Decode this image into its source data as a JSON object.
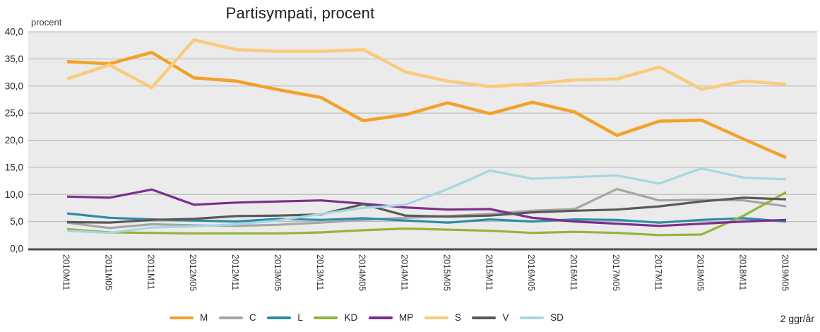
{
  "chart_data": {
    "type": "line",
    "title": "Partisympati, procent",
    "y_axis_label": "procent",
    "corner_note": "2 ggr/år",
    "ylim": [
      0,
      40
    ],
    "y_tick_step": 5,
    "y_tick_labels": [
      "40,0",
      "35,0",
      "30,0",
      "25,0",
      "20,0",
      "15,0",
      "10,0",
      "5,0",
      "0,0"
    ],
    "grid": true,
    "legend_position": "bottom",
    "x_label_orientation": "vertical",
    "plot_background": "#ebebeb",
    "gridline_color": "#b3b3b3",
    "axis_line_color": "#4d4d4d",
    "categories": [
      "2010M11",
      "2011M05",
      "2011M11",
      "2012M05",
      "2012M11",
      "2013M05",
      "2013M11",
      "2014M05",
      "2014M11",
      "2015M05",
      "2015M11",
      "2016M05",
      "2016M11",
      "2017M05",
      "2017M11",
      "2018M05",
      "2018M11",
      "2019M05"
    ],
    "series": [
      {
        "name": "M",
        "color": "#f2a129",
        "values": [
          34.5,
          34.1,
          36.2,
          31.5,
          30.9,
          29.3,
          27.9,
          23.6,
          24.7,
          26.9,
          24.9,
          27.0,
          25.2,
          20.9,
          23.5,
          23.7,
          20.2,
          16.8
        ]
      },
      {
        "name": "C",
        "color": "#a6a6a6",
        "values": [
          4.8,
          3.8,
          4.5,
          4.3,
          4.2,
          4.4,
          4.8,
          5.3,
          5.7,
          6.0,
          6.4,
          7.0,
          7.3,
          11.0,
          8.9,
          9.0,
          8.9,
          7.8
        ]
      },
      {
        "name": "L",
        "color": "#2e8ca8",
        "values": [
          6.5,
          5.7,
          5.4,
          5.2,
          5.0,
          5.5,
          5.3,
          5.6,
          5.2,
          4.8,
          5.4,
          5.0,
          5.4,
          5.3,
          4.8,
          5.3,
          5.6,
          5.0
        ]
      },
      {
        "name": "KD",
        "color": "#94b43c",
        "values": [
          3.6,
          3.0,
          2.9,
          2.8,
          2.8,
          2.8,
          3.0,
          3.4,
          3.7,
          3.5,
          3.3,
          2.9,
          3.1,
          2.9,
          2.5,
          2.6,
          6.1,
          10.4
        ]
      },
      {
        "name": "MP",
        "color": "#7c2e8e",
        "values": [
          9.6,
          9.4,
          10.9,
          8.1,
          8.5,
          8.7,
          8.9,
          8.3,
          7.6,
          7.2,
          7.3,
          5.7,
          5.0,
          4.6,
          4.2,
          4.6,
          5.0,
          5.3
        ]
      },
      {
        "name": "S",
        "color": "#facb7c",
        "values": [
          31.3,
          33.9,
          29.7,
          38.5,
          36.7,
          36.4,
          36.4,
          36.7,
          32.6,
          30.9,
          29.9,
          30.4,
          31.1,
          31.3,
          33.5,
          29.4,
          30.9,
          30.3
        ]
      },
      {
        "name": "V",
        "color": "#595959",
        "values": [
          4.9,
          4.8,
          5.3,
          5.5,
          6.0,
          6.1,
          6.3,
          8.2,
          6.1,
          5.9,
          6.1,
          6.7,
          7.0,
          7.2,
          7.8,
          8.7,
          9.4,
          9.1
        ]
      },
      {
        "name": "SD",
        "color": "#a6d7e0",
        "values": [
          3.3,
          2.9,
          3.9,
          4.1,
          4.5,
          5.2,
          6.4,
          7.5,
          8.1,
          11.0,
          14.4,
          12.9,
          13.2,
          13.5,
          12.0,
          14.8,
          13.1,
          12.8
        ]
      }
    ]
  }
}
